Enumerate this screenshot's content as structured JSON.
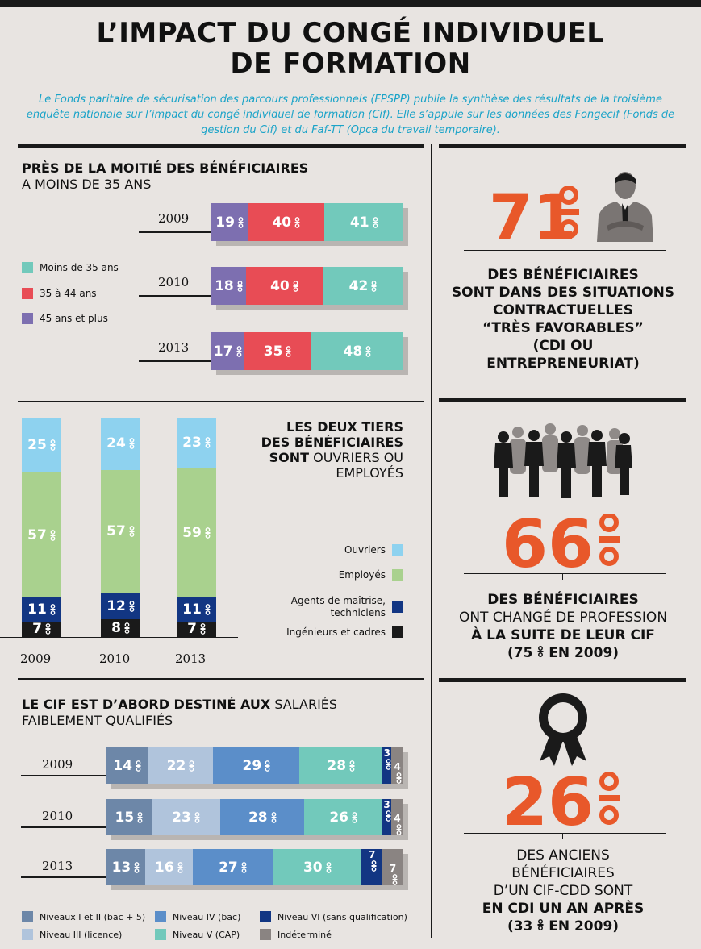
{
  "title_line1": "L’IMPACT DU CONGÉ INDIVIDUEL",
  "title_line2": "DE FORMATION",
  "intro": "Le Fonds paritaire de sécurisation des parcours professionnels (FPSPP) publie la synthèse des résultats de la troisième enquête nationale sur l’impact du congé individuel de formation (Cif). Elle s’appuie sur les données des Fongecif (Fonds de gestion du Cif) et du Faf-TT (Opca du travail temporaire).",
  "colors": {
    "accent": "#e8582a",
    "intro": "#1aa3c8"
  },
  "chart_data": [
    {
      "type": "bar",
      "orientation": "horizontal-stacked",
      "title_bold": "PRÈS DE LA MOITIÉ DES BÉNÉFICIAIRES",
      "title_rest": "A MOINS DE 35 ANS",
      "categories": [
        "2009",
        "2010",
        "2013"
      ],
      "series": [
        {
          "name": "45 ans et plus",
          "color": "#7d6fb0",
          "values": [
            19,
            18,
            17
          ]
        },
        {
          "name": "35 à 44 ans",
          "color": "#e84c55",
          "values": [
            40,
            40,
            35
          ]
        },
        {
          "name": "Moins de 35 ans",
          "color": "#72c9bb",
          "values": [
            41,
            42,
            48
          ]
        }
      ],
      "legend_order": [
        "Moins de 35 ans",
        "35 à 44 ans",
        "45 ans et plus"
      ],
      "unit": "%"
    },
    {
      "type": "bar",
      "orientation": "vertical-stacked",
      "title_parts": [
        {
          "text": "LES DEUX TIERS",
          "bold": true
        },
        {
          "text": "DES BÉNÉFICIAIRES",
          "bold": true
        },
        {
          "text": "SONT",
          "bold": true,
          "rest": " OUVRIERS OU"
        },
        {
          "text": "",
          "bold": false,
          "rest": "EMPLOYÉS"
        }
      ],
      "categories": [
        "2009",
        "2010",
        "2013"
      ],
      "series": [
        {
          "name": "Ingénieurs et cadres",
          "color": "#1a1a1a",
          "values": [
            7,
            8,
            7
          ]
        },
        {
          "name": "Agents de maîtrise, techniciens",
          "color": "#123683",
          "values": [
            11,
            12,
            11
          ]
        },
        {
          "name": "Employés",
          "color": "#a9d18e",
          "values": [
            57,
            57,
            59
          ]
        },
        {
          "name": "Ouvriers",
          "color": "#8ed2ef",
          "values": [
            25,
            24,
            23
          ]
        }
      ],
      "legend_order": [
        "Ouvriers",
        "Employés",
        "Agents de maîtrise, techniciens",
        "Ingénieurs et cadres"
      ],
      "unit": "%"
    },
    {
      "type": "bar",
      "orientation": "horizontal-stacked",
      "title_bold": "LE CIF EST D’ABORD DESTINÉ AUX",
      "title_rest_inline": " SALARIÉS",
      "title_rest": "FAIBLEMENT QUALIFIÉS",
      "categories": [
        "2009",
        "2010",
        "2013"
      ],
      "series": [
        {
          "name": "Niveaux I et II (bac + 5)",
          "color": "#6d87a8",
          "values": [
            14,
            15,
            13
          ]
        },
        {
          "name": "Niveau III (licence)",
          "color": "#b0c4dc",
          "values": [
            22,
            23,
            16
          ]
        },
        {
          "name": "Niveau IV (bac)",
          "color": "#5b8ec9",
          "values": [
            29,
            28,
            27
          ]
        },
        {
          "name": "Niveau V (CAP)",
          "color": "#72c9bb",
          "values": [
            28,
            26,
            30
          ]
        },
        {
          "name": "Niveau VI (sans qualification)",
          "color": "#123683",
          "values": [
            3,
            3,
            7
          ]
        },
        {
          "name": "Indéterminé",
          "color": "#8a8482",
          "values": [
            4,
            4,
            7
          ]
        }
      ],
      "unit": "%"
    }
  ],
  "stats": [
    {
      "value": "71",
      "text": [
        "DES BÉNÉFICIAIRES",
        "SONT DANS DES SITUATIONS",
        "CONTRACTUELLES",
        "“TRÈS FAVORABLES”",
        "(CDI OU",
        "ENTREPRENEURIAT)"
      ],
      "icon": "businessman-icon"
    },
    {
      "value": "66",
      "text_bold1": "DES BÉNÉFICIAIRES",
      "text_light1": "ONT CHANGÉ DE PROFESSION",
      "text_bold2": "À LA SUITE DE LEUR CIF",
      "text_bold3a": "(75",
      "text_bold3b": "EN 2009)",
      "icon": "crowd-icon"
    },
    {
      "value": "26",
      "text_light1": "DES ANCIENS",
      "text_light2": "BÉNÉFICIAIRES",
      "text_light3": "D’UN CIF-CDD SONT",
      "text_bold1": "EN CDI UN AN APRÈS",
      "text_bold2a": "(33",
      "text_bold2b": "EN 2009)",
      "icon": "rosette-icon"
    }
  ]
}
